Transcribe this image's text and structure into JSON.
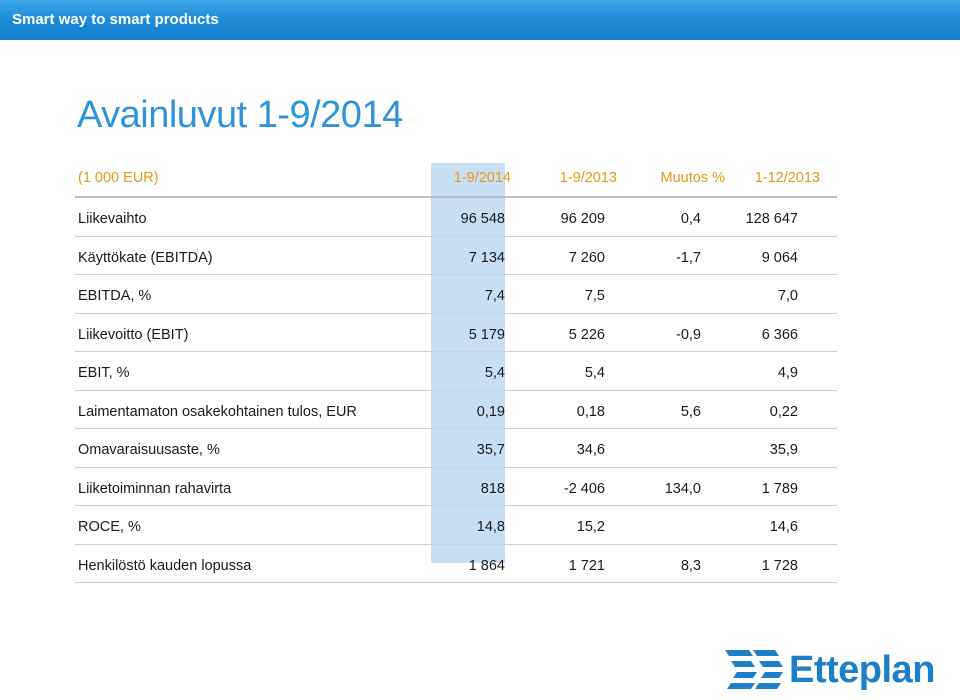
{
  "banner": {
    "text": "Smart way to smart products"
  },
  "title": "Avainluvut 1-9/2014",
  "table": {
    "headers": [
      "(1 000 EUR)",
      "1-9/2014",
      "1-9/2013",
      "Muutos %",
      "1-12/2013"
    ],
    "rows": [
      [
        "Liikevaihto",
        "96 548",
        "96 209",
        "0,4",
        "128 647"
      ],
      [
        "Käyttökate (EBITDA)",
        "7 134",
        "7 260",
        "-1,7",
        "9 064"
      ],
      [
        "EBITDA, %",
        "7,4",
        "7,5",
        "",
        "7,0"
      ],
      [
        "Liikevoitto (EBIT)",
        "5 179",
        "5 226",
        "-0,9",
        "6 366"
      ],
      [
        "EBIT, %",
        "5,4",
        "5,4",
        "",
        "4,9"
      ],
      [
        "Laimentamaton osakekohtainen tulos, EUR",
        "0,19",
        "0,18",
        "5,6",
        "0,22"
      ],
      [
        "Omavaraisuusaste, %",
        "35,7",
        "34,6",
        "",
        "35,9"
      ],
      [
        "Liiketoiminnan rahavirta",
        "818",
        "-2 406",
        "134,0",
        "1 789"
      ],
      [
        "ROCE, %",
        "14,8",
        "15,2",
        "",
        "14,6"
      ],
      [
        "Henkilöstö kauden lopussa",
        "1 864",
        "1 721",
        "8,3",
        "1 728"
      ]
    ]
  },
  "logo": {
    "text": "Etteplan",
    "icon": "etteplan-logo-icon",
    "color": "#1d7fc7"
  },
  "colors": {
    "banner": "#1b8ad6",
    "title": "#2f95d8",
    "header_text": "#e29a16",
    "highlight_column": "#c8def3"
  }
}
